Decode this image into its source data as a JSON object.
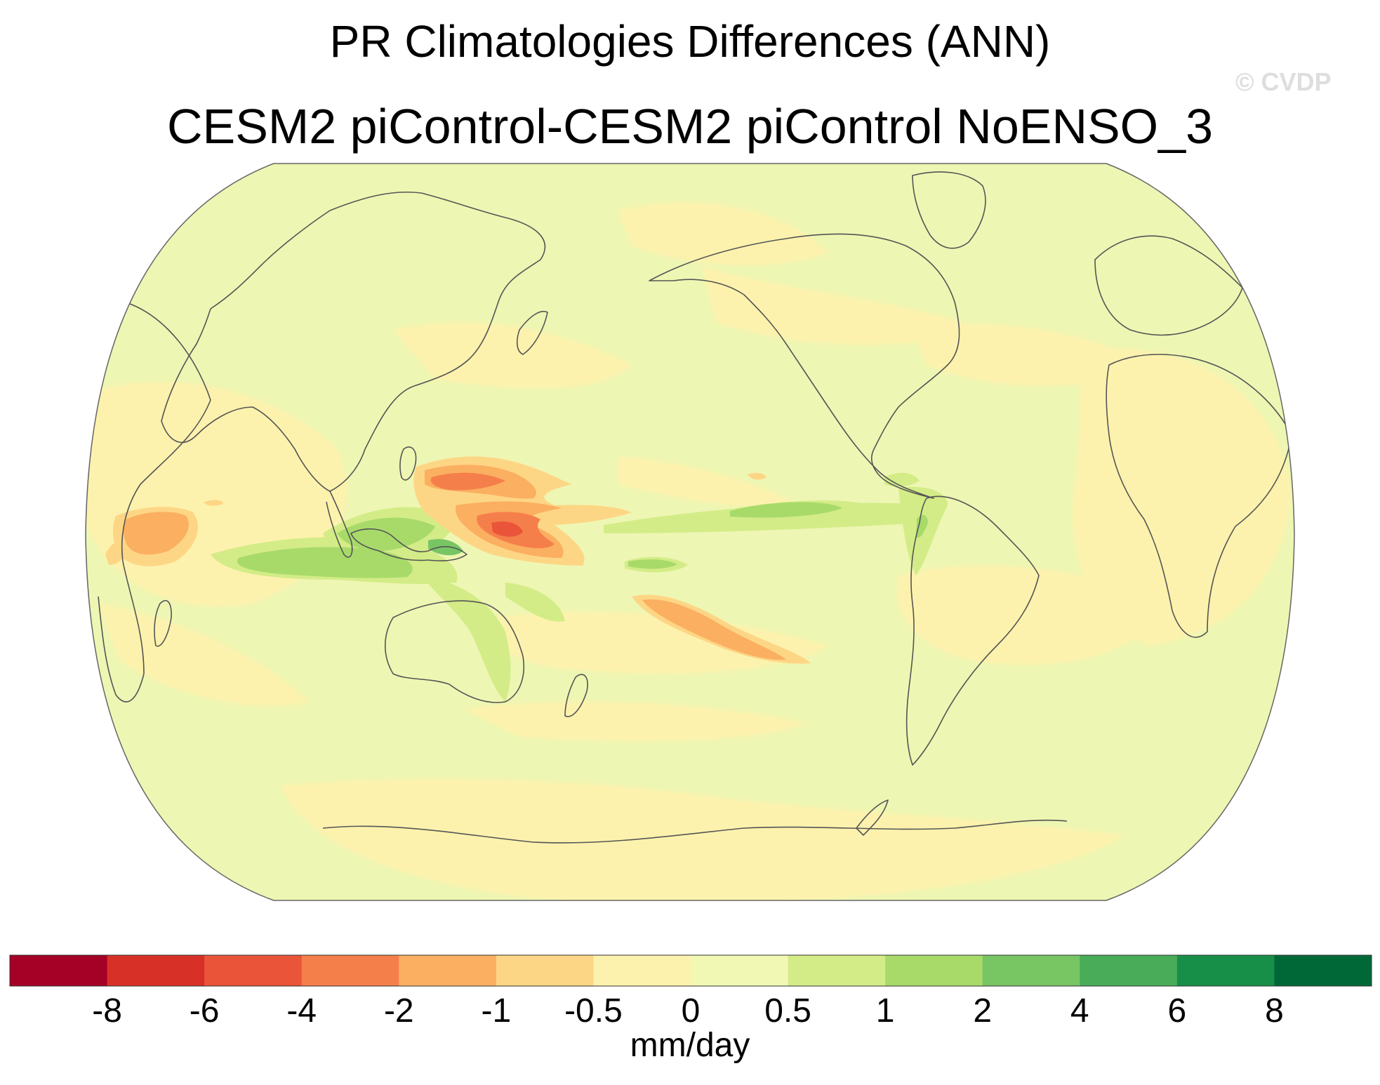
{
  "title": "PR Climatologies Differences (ANN)",
  "subtitle": "CESM2 piControl-CESM2 piControl NoENSO_3",
  "watermark": "© CVDP",
  "colorbar": {
    "units": "mm/day",
    "labels": [
      "-8",
      "-6",
      "-4",
      "-2",
      "-1",
      "-0.5",
      "0",
      "0.5",
      "1",
      "2",
      "4",
      "6",
      "8"
    ],
    "colors": [
      "#a50026",
      "#d73027",
      "#ea5439",
      "#f57f4b",
      "#fbaf61",
      "#fdd685",
      "#fdf2ad",
      "#f1f8b4",
      "#d3ec87",
      "#a8da6a",
      "#78c564",
      "#49ac58",
      "#188f49",
      "#006837"
    ]
  },
  "map": {
    "projection": "Robinson",
    "center": "Pacific",
    "background_color": "#eef6b3",
    "coast_color": "#555555"
  }
}
